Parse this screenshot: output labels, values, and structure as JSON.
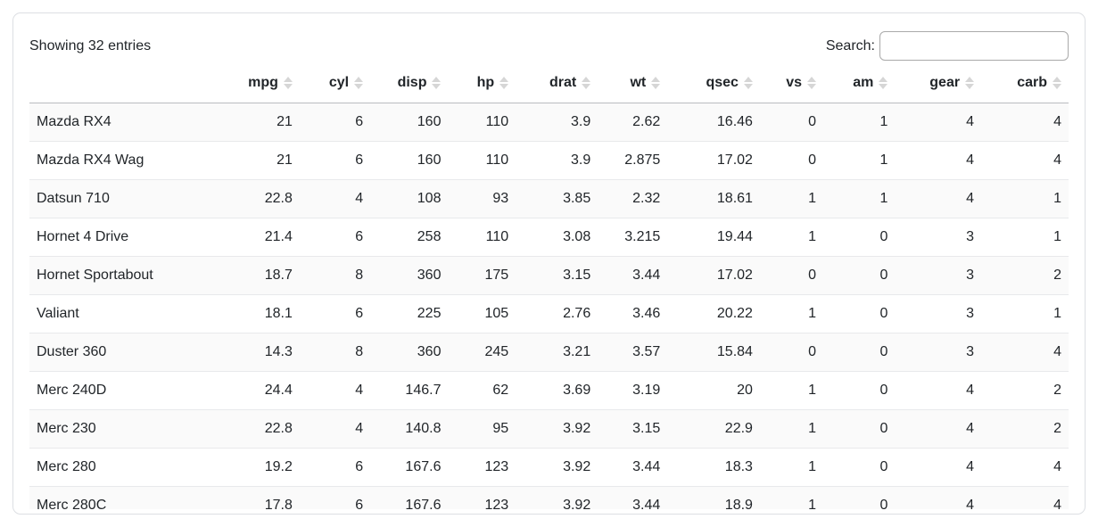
{
  "card": {
    "info_text": "Showing 32 entries",
    "search": {
      "label": "Search:",
      "value": "",
      "placeholder": ""
    }
  },
  "table": {
    "columns": [
      {
        "key": "name",
        "label": "",
        "sortable": false,
        "align": "left"
      },
      {
        "key": "mpg",
        "label": "mpg",
        "sortable": true,
        "align": "right"
      },
      {
        "key": "cyl",
        "label": "cyl",
        "sortable": true,
        "align": "right"
      },
      {
        "key": "disp",
        "label": "disp",
        "sortable": true,
        "align": "right"
      },
      {
        "key": "hp",
        "label": "hp",
        "sortable": true,
        "align": "right"
      },
      {
        "key": "drat",
        "label": "drat",
        "sortable": true,
        "align": "right"
      },
      {
        "key": "wt",
        "label": "wt",
        "sortable": true,
        "align": "right"
      },
      {
        "key": "qsec",
        "label": "qsec",
        "sortable": true,
        "align": "right"
      },
      {
        "key": "vs",
        "label": "vs",
        "sortable": true,
        "align": "right"
      },
      {
        "key": "am",
        "label": "am",
        "sortable": true,
        "align": "right"
      },
      {
        "key": "gear",
        "label": "gear",
        "sortable": true,
        "align": "right"
      },
      {
        "key": "carb",
        "label": "carb",
        "sortable": true,
        "align": "right"
      }
    ],
    "rows": [
      {
        "name": "Mazda RX4",
        "values": [
          21,
          6,
          160,
          110,
          3.9,
          2.62,
          16.46,
          0,
          1,
          4,
          4
        ]
      },
      {
        "name": "Mazda RX4 Wag",
        "values": [
          21,
          6,
          160,
          110,
          3.9,
          2.875,
          17.02,
          0,
          1,
          4,
          4
        ]
      },
      {
        "name": "Datsun 710",
        "values": [
          22.8,
          4,
          108,
          93,
          3.85,
          2.32,
          18.61,
          1,
          1,
          4,
          1
        ]
      },
      {
        "name": "Hornet 4 Drive",
        "values": [
          21.4,
          6,
          258,
          110,
          3.08,
          3.215,
          19.44,
          1,
          0,
          3,
          1
        ]
      },
      {
        "name": "Hornet Sportabout",
        "values": [
          18.7,
          8,
          360,
          175,
          3.15,
          3.44,
          17.02,
          0,
          0,
          3,
          2
        ]
      },
      {
        "name": "Valiant",
        "values": [
          18.1,
          6,
          225,
          105,
          2.76,
          3.46,
          20.22,
          1,
          0,
          3,
          1
        ]
      },
      {
        "name": "Duster 360",
        "values": [
          14.3,
          8,
          360,
          245,
          3.21,
          3.57,
          15.84,
          0,
          0,
          3,
          4
        ]
      },
      {
        "name": "Merc 240D",
        "values": [
          24.4,
          4,
          146.7,
          62,
          3.69,
          3.19,
          20,
          1,
          0,
          4,
          2
        ]
      },
      {
        "name": "Merc 230",
        "values": [
          22.8,
          4,
          140.8,
          95,
          3.92,
          3.15,
          22.9,
          1,
          0,
          4,
          2
        ]
      },
      {
        "name": "Merc 280",
        "values": [
          19.2,
          6,
          167.6,
          123,
          3.92,
          3.44,
          18.3,
          1,
          0,
          4,
          4
        ]
      },
      {
        "name": "Merc 280C",
        "values": [
          17.8,
          6,
          167.6,
          123,
          3.92,
          3.44,
          18.9,
          1,
          0,
          4,
          4
        ]
      }
    ],
    "column_widths_pct": [
      18.6,
      7.4,
      6.8,
      7.5,
      6.5,
      7.9,
      6.7,
      8.9,
      6.1,
      6.9,
      8.3,
      8.4
    ]
  },
  "colors": {
    "text": "#212529",
    "card_border": "#dcdfe3",
    "header_border": "#b9bcc0",
    "row_border": "#e8e9eb",
    "stripe": "#fafafa",
    "sort_icon": "#d6d6d6",
    "input_border": "#a9a9a9"
  }
}
